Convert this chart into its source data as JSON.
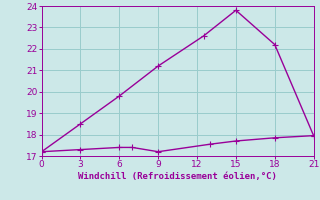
{
  "line1_x": [
    0,
    3,
    6,
    7,
    9,
    13,
    15,
    18,
    21
  ],
  "line1_y": [
    17.2,
    17.3,
    17.4,
    17.4,
    17.2,
    17.55,
    17.7,
    17.85,
    17.95
  ],
  "line2_x": [
    0,
    3,
    6,
    9,
    12.5,
    15,
    18,
    21
  ],
  "line2_y": [
    17.2,
    18.5,
    19.8,
    21.2,
    22.6,
    23.8,
    22.2,
    17.95
  ],
  "line_color": "#990099",
  "bg_color": "#cce8e8",
  "grid_color": "#99cccc",
  "xlabel": "Windchill (Refroidissement éolien,°C)",
  "xlim": [
    0,
    21
  ],
  "ylim": [
    17,
    24
  ],
  "xticks": [
    0,
    3,
    6,
    9,
    12,
    15,
    18,
    21
  ],
  "yticks": [
    17,
    18,
    19,
    20,
    21,
    22,
    23,
    24
  ],
  "markersize": 2.5,
  "linewidth": 1.0,
  "tick_labelsize": 6.5,
  "xlabel_fontsize": 6.5
}
